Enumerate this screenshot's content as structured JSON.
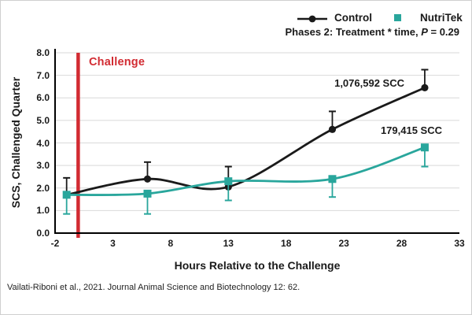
{
  "legend": {
    "control_label": "Control",
    "nutritek_label": "NutriTek"
  },
  "stats": {
    "prefix": "Phases 2: Treatment * time, ",
    "p_symbol": "P",
    "suffix": " = 0.29"
  },
  "annotations": {
    "challenge_label": "Challenge",
    "control_scc": "1,076,592 SCC",
    "nutritek_scc": "179,415 SCC"
  },
  "citation": "Vailati-Riboni et al., 2021. Journal Animal Science and Biotechnology 12: 62.",
  "colors": {
    "black": "#1a1a1a",
    "teal": "#29a69c",
    "red": "#d22b32",
    "grid": "#d9d9d9"
  },
  "chart_data": {
    "type": "line",
    "xlabel": "Hours Relative to the Challenge",
    "ylabel": "SCS, Challenged Quarter",
    "xlim": [
      -2,
      33
    ],
    "ylim": [
      0,
      8
    ],
    "x_ticks": [
      -2,
      3,
      8,
      13,
      18,
      23,
      28,
      33
    ],
    "x_tick_labels": [
      "-2",
      "3",
      "8",
      "13",
      "18",
      "23",
      "28",
      "33"
    ],
    "y_ticks": [
      0,
      1,
      2,
      3,
      4,
      5,
      6,
      7,
      8
    ],
    "y_tick_labels": [
      "0.0",
      "1.0",
      "2.0",
      "3.0",
      "4.0",
      "5.0",
      "6.0",
      "7.0",
      "8.0"
    ],
    "grid": "horizontal",
    "legend_position": "top-right",
    "challenge_line_x": 0,
    "series": [
      {
        "name": "Control",
        "color": "#1a1a1a",
        "marker": "circle",
        "x": [
          -1,
          6,
          13,
          22,
          30
        ],
        "y": [
          1.7,
          2.4,
          2.05,
          4.6,
          6.45
        ],
        "err_up": [
          0.75,
          0.75,
          0.9,
          0.8,
          0.8
        ],
        "err_down": [
          0,
          0,
          0,
          0,
          0
        ],
        "end_label": "1,076,592 SCC"
      },
      {
        "name": "NutriTek",
        "color": "#29a69c",
        "marker": "square",
        "x": [
          -1,
          6,
          13,
          22,
          30
        ],
        "y": [
          1.7,
          1.75,
          2.3,
          2.4,
          3.8
        ],
        "err_up": [
          0,
          0,
          0,
          0,
          0
        ],
        "err_down": [
          0.85,
          0.9,
          0.85,
          0.8,
          0.85
        ],
        "end_label": "179,415 SCC"
      }
    ]
  }
}
